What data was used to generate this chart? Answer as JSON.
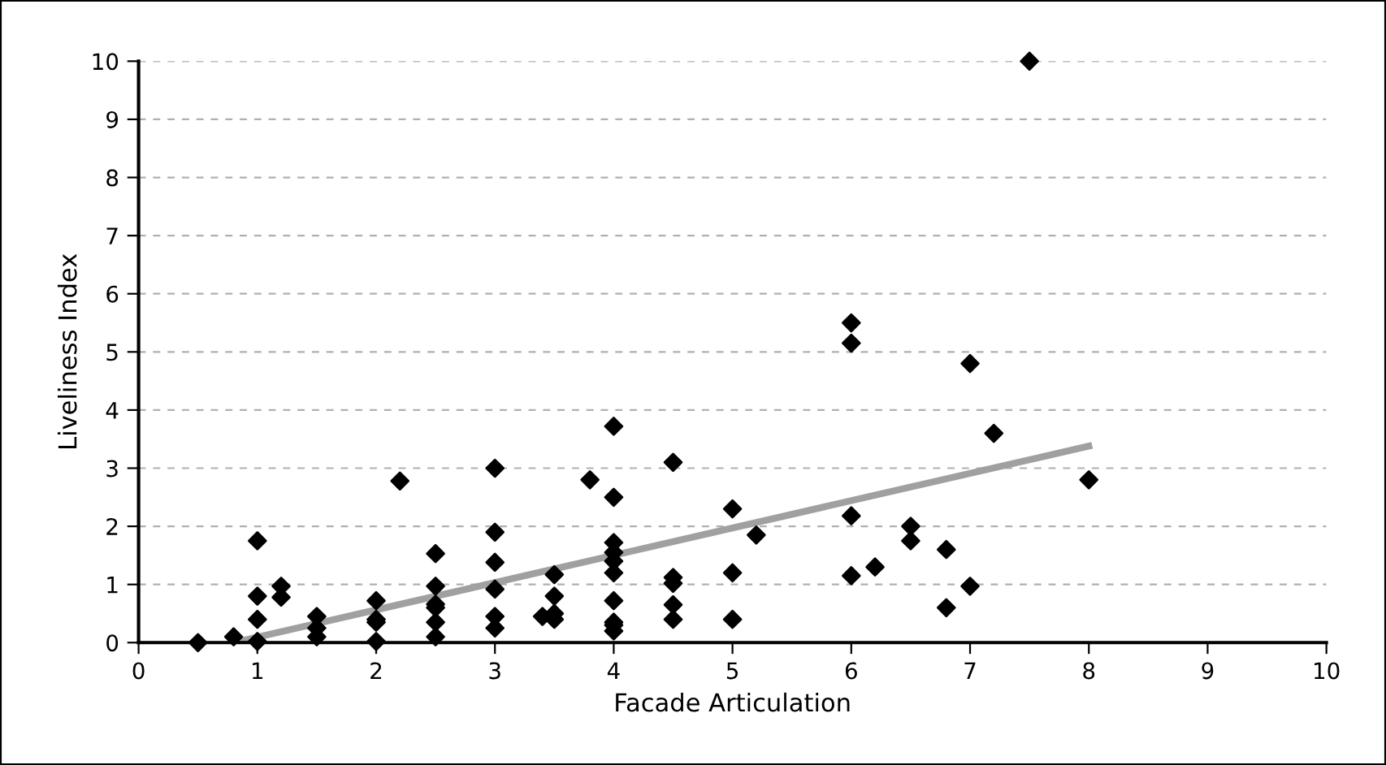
{
  "chart_data": {
    "type": "scatter",
    "xlabel": "Facade Articulation",
    "ylabel": "Liveliness Index",
    "xlim": [
      0,
      10
    ],
    "xticks": [
      0,
      1,
      2,
      3,
      4,
      5,
      6,
      7,
      8,
      9,
      10
    ],
    "ylim": [
      0,
      10
    ],
    "yticks": [
      0,
      1,
      2,
      3,
      4,
      5,
      6,
      7,
      8,
      9,
      10
    ],
    "grid": "y",
    "legend": false,
    "marker": "diamond",
    "series": [
      {
        "color": "#000000",
        "x": [
          0.5,
          0.8,
          1,
          1,
          1,
          1,
          1.2,
          1.2,
          1.5,
          1.5,
          1.5,
          2,
          2,
          2,
          2,
          2.2,
          2.5,
          2.5,
          2.5,
          2.5,
          2.5,
          2.5,
          3,
          3,
          3,
          3,
          3,
          3,
          3.4,
          3.5,
          3.5,
          3.5,
          3.5,
          3.8,
          4,
          4,
          4,
          4,
          4,
          4,
          4,
          4,
          4,
          4,
          4.5,
          4.5,
          4.5,
          4.5,
          4.5,
          5,
          5,
          5,
          5.2,
          6,
          6,
          6,
          6,
          6.2,
          6.5,
          6.5,
          6.8,
          6.8,
          7,
          7,
          7.2,
          7.5,
          8
        ],
        "values": [
          0,
          0.1,
          1.75,
          0.8,
          0.4,
          0.02,
          0.97,
          0.78,
          0.45,
          0.25,
          0.1,
          0.72,
          0.4,
          0.35,
          0.02,
          2.78,
          1.53,
          0.97,
          0.66,
          0.6,
          0.35,
          0.1,
          3.0,
          1.9,
          1.38,
          0.92,
          0.45,
          0.25,
          0.45,
          1.17,
          0.8,
          0.5,
          0.4,
          2.8,
          3.72,
          2.5,
          1.72,
          1.55,
          1.4,
          1.2,
          0.72,
          0.35,
          0.3,
          0.2,
          3.1,
          1.12,
          1.02,
          0.65,
          0.4,
          2.3,
          1.2,
          0.4,
          1.85,
          5.5,
          5.15,
          2.18,
          1.15,
          1.3,
          2.0,
          1.75,
          1.6,
          0.6,
          4.8,
          0.97,
          3.6,
          10,
          2.8
        ]
      },
      {
        "type": "line",
        "color": "#a0a0a0",
        "marker": "none",
        "line_style": "solid",
        "x": [
          0.8,
          8
        ],
        "values": [
          0,
          3.38
        ]
      }
    ]
  }
}
